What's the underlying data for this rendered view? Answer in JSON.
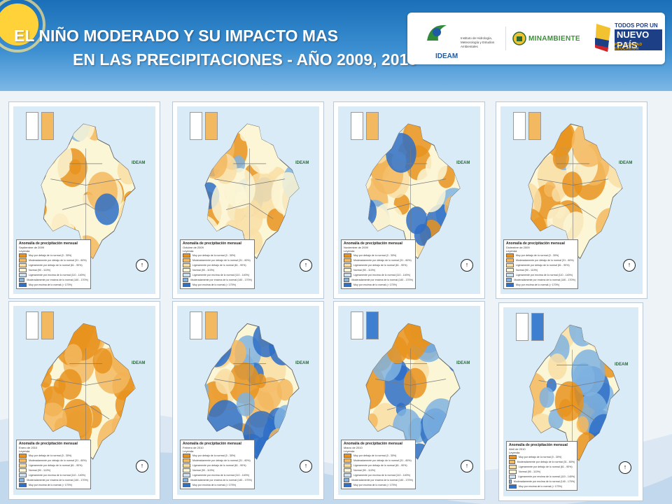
{
  "slide": {
    "title_line1": "EL NIÑO MODERADO Y SU IMPACTO MAS",
    "title_line2": "EN LAS PRECIPITACIONES - AÑO 2009, 2010"
  },
  "logos": {
    "ideam": "IDEAM",
    "ideam_sub": "Instituto de Hidrología, Meteorología y Estudios Ambientales",
    "minambiente": "MINAMBIENTE",
    "pais_top": "TODOS POR UN",
    "pais_main": "NUEVO PAÍS",
    "pais_tag": "PAZ EQUIDAD EDUCACIÓN"
  },
  "colors": {
    "muy_debajo": "#e8931f",
    "moder_debajo": "#f3b960",
    "lig_debajo": "#f9dea6",
    "normal": "#fbf6d6",
    "lig_encima": "#cfe3f3",
    "moder_encima": "#7fb3e0",
    "muy_encima": "#2e6fc7"
  },
  "legend_common": {
    "title": "Anomalía de precipitación mensual",
    "key": "Leyenda",
    "items": [
      "Muy por debajo de lo normal (0 - 30%)",
      "Moderadamente por debajo de lo normal (31 - 60%)",
      "Ligeramente por debajo de lo normal (61 - 90%)",
      "Normal (90 - 110%)",
      "Ligeramente por encima de lo normal (110 - 140%)",
      "Moderadamente por encima de lo normal (140 - 170%)",
      "Muy por encima de lo normal (> 170%)"
    ]
  },
  "maps": [
    {
      "month": "Septiembre de 2009",
      "dry_level": 0.55,
      "wet_level": 0.05
    },
    {
      "month": "Octubre de 2009",
      "dry_level": 0.3,
      "wet_level": 0.1
    },
    {
      "month": "Noviembre de 2009",
      "dry_level": 0.35,
      "wet_level": 0.25
    },
    {
      "month": "Diciembre de 2009",
      "dry_level": 0.6,
      "wet_level": 0.15
    },
    {
      "month": "Enero de 2010",
      "dry_level": 0.95,
      "wet_level": 0.05
    },
    {
      "month": "Febrero de 2010",
      "dry_level": 0.45,
      "wet_level": 0.35
    },
    {
      "month": "Marzo de 2010",
      "dry_level": 0.2,
      "wet_level": 0.85
    },
    {
      "month": "Abril de 2010",
      "dry_level": 0.3,
      "wet_level": 0.55
    }
  ]
}
